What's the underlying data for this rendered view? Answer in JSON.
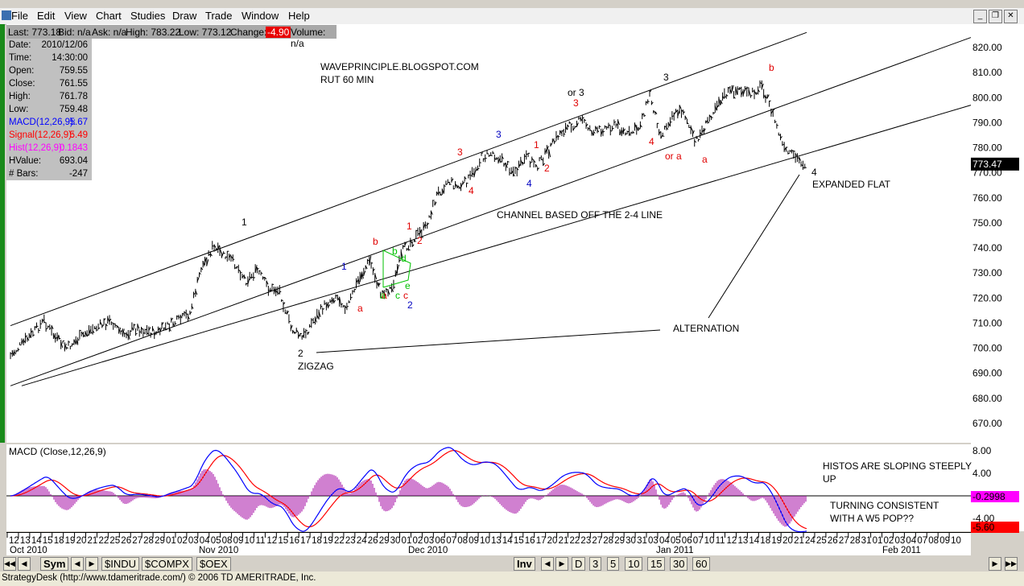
{
  "menu": [
    "File",
    "Edit",
    "View",
    "Chart",
    "Studies",
    "Draw",
    "Trade",
    "Window",
    "Help"
  ],
  "infobar": {
    "last": "Last: 773.18",
    "bid": "Bid: n/a",
    "ask": "Ask: n/a",
    "high": "High: 783.22",
    "low": "Low: 773.12",
    "change_label": "Change:",
    "change_value": "-4.90",
    "volume": "Volume: n/a"
  },
  "datapanel": [
    {
      "label": "Date:",
      "value": "2010/12/06",
      "color": "#000000"
    },
    {
      "label": "Time:",
      "value": "14:30:00",
      "color": "#000000"
    },
    {
      "label": "Open:",
      "value": "759.55",
      "color": "#000000"
    },
    {
      "label": "Close:",
      "value": "761.55",
      "color": "#000000"
    },
    {
      "label": "High:",
      "value": "761.78",
      "color": "#000000"
    },
    {
      "label": "Low:",
      "value": "759.48",
      "color": "#000000"
    },
    {
      "label": "MACD(12,26,9):",
      "value": "5.67",
      "color": "#0000ff"
    },
    {
      "label": "Signal(12,26,9):",
      "value": "5.49",
      "color": "#ff0000"
    },
    {
      "label": "Hist(12,26,9):",
      "value": "0.1843",
      "color": "#ff00ff"
    },
    {
      "label": "HValue:",
      "value": "693.04",
      "color": "#000000"
    },
    {
      "label": "# Bars:",
      "value": "-247",
      "color": "#000000"
    }
  ],
  "annotations": {
    "source": "WAVEPRINCIPLE.BLOGSPOT.COM",
    "symbol": "RUT 60 MIN",
    "channel": "CHANNEL BASED OFF THE 2-4 LINE",
    "alternation": "ALTERNATION",
    "zigzag": "ZIGZAG",
    "expanded_flat": "EXPANDED FLAT",
    "histos_1": "HISTOS ARE SLOPING STEEPLY",
    "histos_2": "UP",
    "turning_1": "TURNING CONSISTENT",
    "turning_2": "WITH A W5 POP??"
  },
  "wave_labels": [
    {
      "text": "1",
      "color": "#000000"
    },
    {
      "text": "2",
      "color": "#000000"
    },
    {
      "text": "3",
      "color": "#000000"
    },
    {
      "text": "4",
      "color": "#000000"
    },
    {
      "text": "or 3",
      "color": "#000000"
    },
    {
      "text": "3",
      "color": "#e00000"
    },
    {
      "text": "b",
      "color": "#e00000"
    },
    {
      "text": "a",
      "color": "#e00000"
    },
    {
      "text": "or a",
      "color": "#e00000"
    },
    {
      "text": "a",
      "color": "#e00000"
    },
    {
      "text": "4",
      "color": "#e00000"
    },
    {
      "text": "b",
      "color": "#e00000"
    },
    {
      "text": "1",
      "color": "#e00000"
    },
    {
      "text": "2",
      "color": "#e00000"
    },
    {
      "text": "1",
      "color": "#e00000"
    },
    {
      "text": "2",
      "color": "#e00000"
    },
    {
      "text": "3",
      "color": "#e00000"
    },
    {
      "text": "4",
      "color": "#e00000"
    },
    {
      "text": "a",
      "color": "#e00000"
    },
    {
      "text": "c",
      "color": "#e00000"
    },
    {
      "text": "1",
      "color": "#0000c0"
    },
    {
      "text": "2",
      "color": "#0000c0"
    },
    {
      "text": "3",
      "color": "#0000c0"
    },
    {
      "text": "4",
      "color": "#0000c0"
    },
    {
      "text": "a",
      "color": "#00c000"
    },
    {
      "text": "b",
      "color": "#00c000"
    },
    {
      "text": "c",
      "color": "#00c000"
    },
    {
      "text": "d",
      "color": "#00c000"
    },
    {
      "text": "e",
      "color": "#00c000"
    }
  ],
  "macd_title": "MACD (Close,12,26,9)",
  "x_day_labels": [
    "12",
    "13",
    "14",
    "15",
    "18",
    "19",
    "20",
    "21",
    "22",
    "25",
    "26",
    "27",
    "28",
    "29",
    "01",
    "02",
    "03",
    "04",
    "05",
    "08",
    "09",
    "10",
    "11",
    "12",
    "15",
    "16",
    "17",
    "18",
    "19",
    "22",
    "23",
    "24",
    "26",
    "29",
    "30",
    "01",
    "02",
    "03",
    "06",
    "07",
    "08",
    "09",
    "10",
    "13",
    "14",
    "15",
    "16",
    "17",
    "20",
    "21",
    "22",
    "23",
    "27",
    "28",
    "29",
    "30",
    "31",
    "03",
    "04",
    "05",
    "06",
    "07",
    "10",
    "11",
    "12",
    "13",
    "14",
    "18",
    "19",
    "20",
    "21",
    "24",
    "25",
    "26",
    "27",
    "28",
    "31",
    "01",
    "02",
    "03",
    "04",
    "07",
    "08",
    "09",
    "10"
  ],
  "x_month_labels": [
    "Oct 2010",
    "Nov 2010",
    "Dec 2010",
    "Jan 2011",
    "Feb 2011"
  ],
  "tabs": [
    "Sym",
    "$INDU",
    "$COMPX",
    "$OEX",
    "Inv",
    "D",
    "3",
    "5",
    "10",
    "15",
    "30",
    "60"
  ],
  "status_text": "StrategyDesk (http://www.tdameritrade.com/) © 2006 TD AMERITRADE, Inc.",
  "chart_data": {
    "type": "line",
    "price_y_ticks": [
      820,
      810,
      800,
      790,
      780,
      770,
      760,
      750,
      740,
      730,
      720,
      710,
      700,
      690,
      680,
      670
    ],
    "price_ylim": [
      664,
      826
    ],
    "last_price_label": "773.47",
    "price_path": [
      [
        "2010-10-12",
        697
      ],
      [
        "2010-10-14",
        706
      ],
      [
        "2010-10-15",
        711
      ],
      [
        "2010-10-18",
        704
      ],
      [
        "2010-10-19",
        700
      ],
      [
        "2010-10-21",
        707
      ],
      [
        "2010-10-22",
        709
      ],
      [
        "2010-10-25",
        711
      ],
      [
        "2010-10-26",
        705
      ],
      [
        "2010-10-27",
        708
      ],
      [
        "2010-10-28",
        707
      ],
      [
        "2010-10-29",
        706
      ],
      [
        "2010-11-01",
        709
      ],
      [
        "2010-11-02",
        711
      ],
      [
        "2010-11-03",
        714
      ],
      [
        "2010-11-04",
        732
      ],
      [
        "2010-11-05",
        740
      ],
      [
        "2010-11-08",
        737
      ],
      [
        "2010-11-09",
        734
      ],
      [
        "2010-11-10",
        727
      ],
      [
        "2010-11-11",
        731
      ],
      [
        "2010-11-12",
        724
      ],
      [
        "2010-11-15",
        723
      ],
      [
        "2010-11-16",
        708
      ],
      [
        "2010-11-17",
        704
      ],
      [
        "2010-11-18",
        711
      ],
      [
        "2010-11-19",
        717
      ],
      [
        "2010-11-22",
        721
      ],
      [
        "2010-11-23",
        716
      ],
      [
        "2010-11-24",
        727
      ],
      [
        "2010-11-26",
        735
      ],
      [
        "2010-11-29",
        722
      ],
      [
        "2010-11-30",
        724
      ],
      [
        "2010-12-01",
        739
      ],
      [
        "2010-12-02",
        744
      ],
      [
        "2010-12-03",
        748
      ],
      [
        "2010-12-06",
        761
      ],
      [
        "2010-12-07",
        767
      ],
      [
        "2010-12-08",
        764
      ],
      [
        "2010-12-09",
        768
      ],
      [
        "2010-12-10",
        776
      ],
      [
        "2010-12-13",
        778
      ],
      [
        "2010-12-14",
        774
      ],
      [
        "2010-12-15",
        770
      ],
      [
        "2010-12-16",
        776
      ],
      [
        "2010-12-17",
        773
      ],
      [
        "2010-12-20",
        779
      ],
      [
        "2010-12-21",
        786
      ],
      [
        "2010-12-22",
        789
      ],
      [
        "2010-12-23",
        791
      ],
      [
        "2010-12-27",
        786
      ],
      [
        "2010-12-28",
        788
      ],
      [
        "2010-12-29",
        789
      ],
      [
        "2010-12-30",
        785
      ],
      [
        "2010-12-31",
        788
      ],
      [
        "2011-01-03",
        801
      ],
      [
        "2011-01-04",
        785
      ],
      [
        "2011-01-05",
        793
      ],
      [
        "2011-01-06",
        795
      ],
      [
        "2011-01-07",
        782
      ],
      [
        "2011-01-10",
        789
      ],
      [
        "2011-01-11",
        798
      ],
      [
        "2011-01-12",
        802
      ],
      [
        "2011-01-13",
        803
      ],
      [
        "2011-01-14",
        801
      ],
      [
        "2011-01-18",
        805
      ],
      [
        "2011-01-19",
        793
      ],
      [
        "2011-01-20",
        779
      ],
      [
        "2011-01-21",
        776
      ],
      [
        "2011-01-24",
        773
      ]
    ],
    "channels": [
      {
        "from": [
          "2010-10-12",
          709
        ],
        "to": [
          "2011-01-24",
          826
        ]
      },
      {
        "from": [
          "2010-10-12",
          685
        ],
        "to": [
          "2011-02-10",
          824
        ]
      },
      {
        "from": [
          "2010-10-13",
          685
        ],
        "to": [
          "2011-02-10",
          797
        ]
      }
    ],
    "macd_y_ticks": [
      "8.00",
      "4.00",
      "-4.00"
    ],
    "macd_value_label": "-0.2998",
    "signal_value_label": "-5.60",
    "macd_ylim": [
      -7,
      9
    ]
  }
}
